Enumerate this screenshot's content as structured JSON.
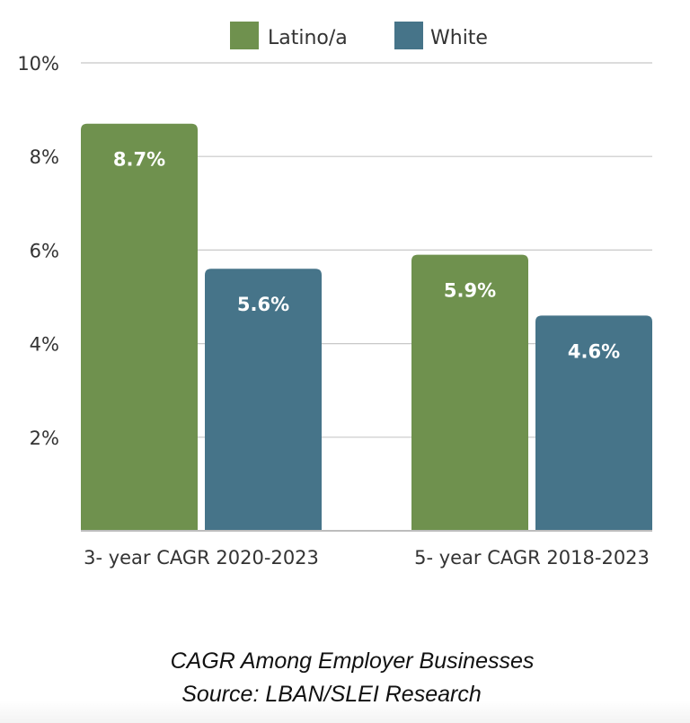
{
  "chart_data": {
    "type": "bar",
    "title": "CAGR Among Employer Businesses",
    "subtitle": "Source: LBAN/SLEI Research",
    "xlabel": "",
    "ylabel": "",
    "categories": [
      "3- year CAGR 2020-2023",
      "5- year CAGR 2018-2023"
    ],
    "series": [
      {
        "name": "Latino/a",
        "color": "#6f914e",
        "values": [
          8.7,
          5.9
        ],
        "labels": [
          "8.7%",
          "5.9%"
        ]
      },
      {
        "name": "White",
        "color": "#467489",
        "values": [
          5.6,
          4.6
        ],
        "labels": [
          "5.6%",
          "4.6%"
        ]
      }
    ],
    "ylim": [
      0,
      10
    ],
    "yticks": [
      2,
      4,
      6,
      8,
      10
    ],
    "ytick_labels": [
      "2%",
      "4%",
      "6%",
      "8%",
      "10%"
    ],
    "grid": true,
    "legend_position": "top-center",
    "data_labels": true
  }
}
